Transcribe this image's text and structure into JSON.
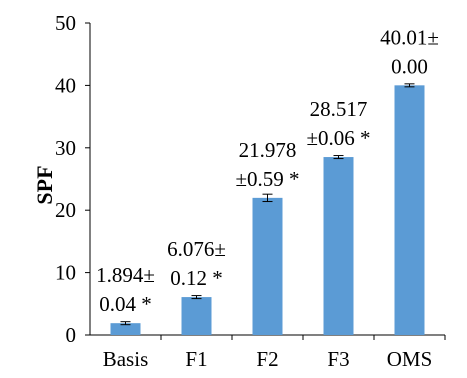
{
  "chart_data": {
    "type": "bar",
    "title": "",
    "xlabel": "",
    "ylabel": "SPF",
    "ylim": [
      0,
      50
    ],
    "yticks": [
      0,
      10,
      20,
      30,
      40,
      50
    ],
    "grid": false,
    "legend": "none",
    "categories": [
      "Basis",
      "F1",
      "F2",
      "F3",
      "OMS"
    ],
    "values": [
      1.894,
      6.076,
      21.978,
      28.517,
      40.01
    ],
    "errors": [
      0.04,
      0.12,
      0.59,
      0.06,
      0.0
    ],
    "data_labels": [
      [
        "1.894±",
        "0.04 *"
      ],
      [
        "6.076±",
        "0.12 *"
      ],
      [
        "21.978",
        "±0.59 *"
      ],
      [
        "28.517",
        "±0.06 *"
      ],
      [
        "40.01±",
        "0.00"
      ]
    ],
    "bar_color": "#5b9bd5"
  }
}
